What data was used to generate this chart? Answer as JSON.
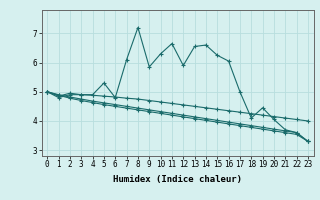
{
  "xlabel": "Humidex (Indice chaleur)",
  "ylabel": "",
  "background_color": "#d6f0ef",
  "grid_color": "#b8dede",
  "line_color": "#1a6b6b",
  "xlim": [
    -0.5,
    23.5
  ],
  "ylim": [
    2.8,
    7.8
  ],
  "xticks": [
    0,
    1,
    2,
    3,
    4,
    5,
    6,
    7,
    8,
    9,
    10,
    11,
    12,
    13,
    14,
    15,
    16,
    17,
    18,
    19,
    20,
    21,
    22,
    23
  ],
  "yticks": [
    3,
    4,
    5,
    6,
    7
  ],
  "series": [
    [
      5.0,
      4.8,
      4.9,
      4.9,
      4.9,
      5.3,
      4.8,
      6.1,
      7.2,
      5.85,
      6.3,
      6.65,
      5.9,
      6.55,
      6.6,
      6.25,
      6.05,
      5.0,
      4.1,
      4.45,
      4.05,
      3.7,
      3.6,
      3.3
    ],
    [
      5.0,
      4.85,
      4.95,
      4.9,
      4.88,
      4.85,
      4.82,
      4.78,
      4.75,
      4.7,
      4.65,
      4.6,
      4.55,
      4.5,
      4.45,
      4.4,
      4.35,
      4.3,
      4.25,
      4.2,
      4.15,
      4.1,
      4.05,
      4.0
    ],
    [
      5.0,
      4.9,
      4.82,
      4.75,
      4.68,
      4.62,
      4.56,
      4.5,
      4.44,
      4.38,
      4.32,
      4.26,
      4.2,
      4.14,
      4.08,
      4.02,
      3.96,
      3.9,
      3.84,
      3.78,
      3.72,
      3.66,
      3.6,
      3.3
    ],
    [
      5.0,
      4.88,
      4.78,
      4.7,
      4.63,
      4.56,
      4.5,
      4.44,
      4.38,
      4.32,
      4.26,
      4.2,
      4.14,
      4.08,
      4.02,
      3.96,
      3.9,
      3.84,
      3.78,
      3.72,
      3.66,
      3.6,
      3.54,
      3.3
    ]
  ],
  "marker": "+",
  "markersize": 3,
  "linewidth": 0.8,
  "label_fontsize": 6.5,
  "tick_fontsize": 5.5
}
